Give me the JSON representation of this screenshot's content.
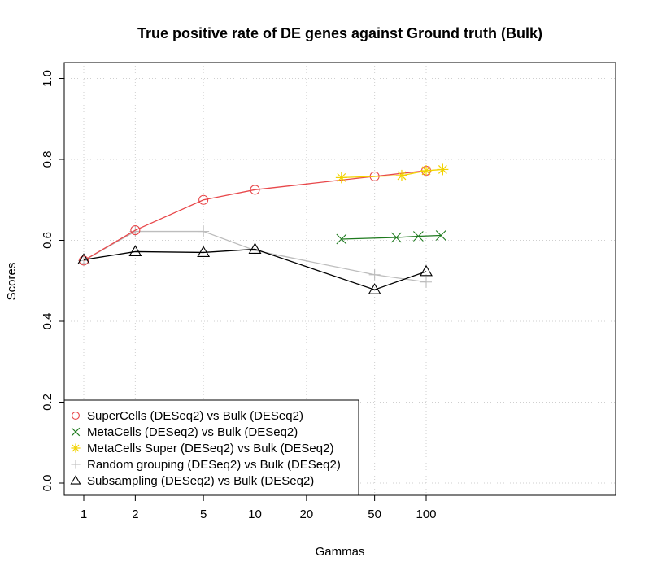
{
  "chart_data": {
    "type": "line",
    "title": "True positive rate of DE genes against Ground truth (Bulk)",
    "xlabel": "Gammas",
    "ylabel": "Scores",
    "x_scale": "log",
    "xlim": [
      1,
      120
    ],
    "ylim": [
      0,
      1
    ],
    "x_ticks": [
      1,
      2,
      5,
      10,
      20,
      50,
      100
    ],
    "y_ticks": [
      0.0,
      0.2,
      0.4,
      0.6,
      0.8,
      1.0
    ],
    "x_tick_labels": [
      "1",
      "2",
      "5",
      "10",
      "20",
      "50",
      "100"
    ],
    "y_tick_labels": [
      "0.0",
      "0.2",
      "0.4",
      "0.6",
      "0.8",
      "1.0"
    ],
    "grid": true,
    "legend_position": "bottom-left",
    "series": [
      {
        "name": "SuperCells (DESeq2) vs Bulk (DESeq2)",
        "color": "#e8474a",
        "marker": "circle",
        "x": [
          1,
          2,
          5,
          10,
          50,
          100
        ],
        "y": [
          0.55,
          0.625,
          0.7,
          0.725,
          0.758,
          0.772
        ]
      },
      {
        "name": "MetaCells (DESeq2) vs Bulk (DESeq2)",
        "color": "#1e7a1e",
        "marker": "x",
        "x": [
          32,
          67,
          90,
          122
        ],
        "y": [
          0.603,
          0.607,
          0.61,
          0.612
        ]
      },
      {
        "name": "MetaCells Super (DESeq2) vs Bulk (DESeq2)",
        "color": "#f2d200",
        "marker": "asterisk",
        "x": [
          32,
          72,
          100,
          125
        ],
        "y": [
          0.755,
          0.76,
          0.772,
          0.775
        ]
      },
      {
        "name": "Random grouping (DESeq2) vs Bulk (DESeq2)",
        "color": "#bdbdbd",
        "marker": "plus",
        "x": [
          1,
          2,
          5,
          10,
          50,
          100
        ],
        "y": [
          0.55,
          0.622,
          0.622,
          0.575,
          0.515,
          0.497
        ]
      },
      {
        "name": "Subsampling (DESeq2) vs Bulk (DESeq2)",
        "color": "#000000",
        "marker": "triangle",
        "x": [
          1,
          2,
          5,
          10,
          50,
          100
        ],
        "y": [
          0.552,
          0.572,
          0.57,
          0.578,
          0.478,
          0.523
        ]
      }
    ]
  }
}
